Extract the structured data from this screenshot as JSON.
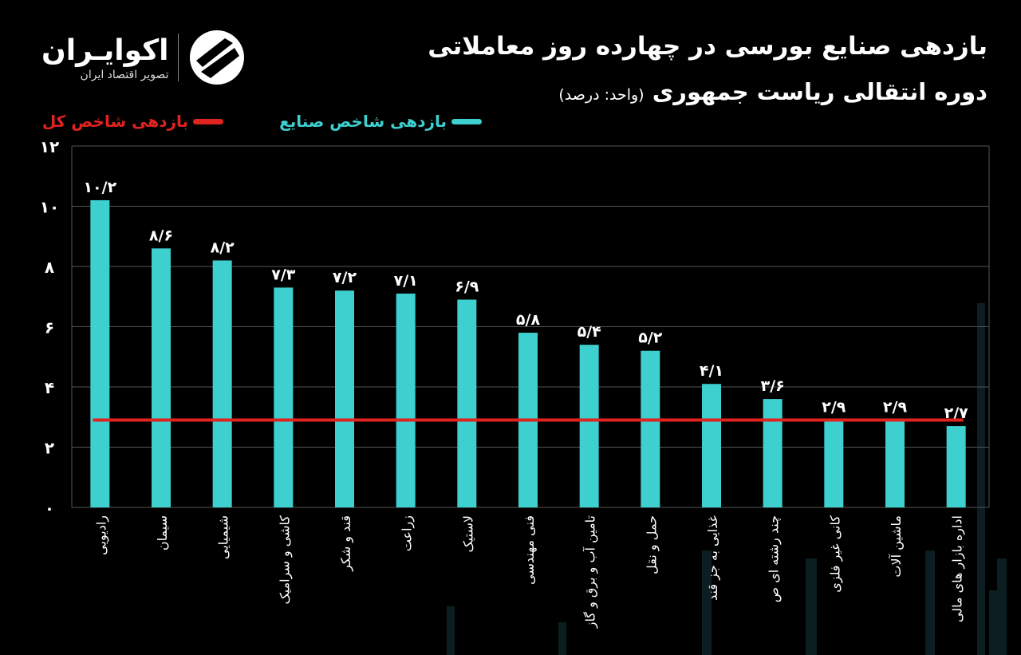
{
  "header": {
    "title_line1": "بازدهی صنایع بورسی در چهارده روز معاملاتی",
    "title_line2": "دوره انتقالی ریاست جمهوری",
    "unit": "(واحد: درصد)"
  },
  "logo": {
    "name": "اکوایـران",
    "tagline": "تصویر اقتصاد ایران"
  },
  "legend": {
    "industries": "بازدهی شاخص صنایع",
    "overall": "بازدهی شاخص کل"
  },
  "colors": {
    "bars": "#3ecfcf",
    "overall_line": "#e0231f",
    "background": "#000000"
  },
  "chart_data": {
    "type": "bar",
    "title": "بازدهی صنایع بورسی در چهارده روز معاملاتی دوره انتقالی ریاست جمهوری",
    "ylabel": "(واحد: درصد)",
    "ylim": [
      0,
      12
    ],
    "yticks": [
      0,
      2,
      4,
      6,
      8,
      10,
      12
    ],
    "ytick_labels": [
      "۰",
      "۲",
      "۴",
      "۶",
      "۸",
      "۱۰",
      "۱۲"
    ],
    "grid": true,
    "legend_placement": "top",
    "categories": [
      "رادیویی",
      "سیمان",
      "شیمیایی",
      "کاشی و سرامیک",
      "قند و شکر",
      "زراعت",
      "لاستیک",
      "فنی مهندسی",
      "تامین آب و برق و گاز",
      "حمل و نقل",
      "غذایی به جز قند",
      "چند رشته ای ص",
      "کانی غیر فلزی",
      "ماشین آلات",
      "اداره بازار های مالی"
    ],
    "series": [
      {
        "name": "بازدهی شاخص صنایع",
        "type": "bar",
        "values": [
          10.2,
          8.6,
          8.2,
          7.3,
          7.2,
          7.1,
          6.9,
          5.8,
          5.4,
          5.2,
          4.1,
          3.6,
          2.9,
          2.9,
          2.7
        ],
        "data_labels": [
          "۱۰/۲",
          "۸/۶",
          "۸/۲",
          "۷/۳",
          "۷/۲",
          "۷/۱",
          "۶/۹",
          "۵/۸",
          "۵/۴",
          "۵/۲",
          "۴/۱",
          "۳/۶",
          "۲/۹",
          "۲/۹",
          "۲/۷"
        ]
      },
      {
        "name": "بازدهی شاخص کل",
        "type": "line",
        "value": 2.9
      }
    ]
  }
}
